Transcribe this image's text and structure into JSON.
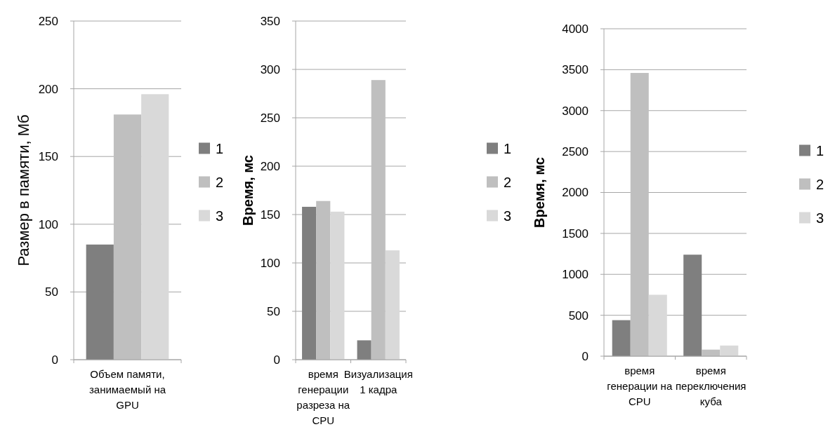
{
  "chart_data": [
    {
      "type": "bar",
      "ylabel": "Размер в памяти, Мб",
      "categories": [
        "Объем памяти, занимаемый на GPU"
      ],
      "series": [
        {
          "name": "1",
          "color": "#7f7f7f",
          "values": [
            85
          ]
        },
        {
          "name": "2",
          "color": "#bfbfbf",
          "values": [
            181
          ]
        },
        {
          "name": "3",
          "color": "#d9d9d9",
          "values": [
            196
          ]
        }
      ],
      "ylim": [
        0,
        250
      ],
      "yticks": [
        0,
        50,
        100,
        150,
        200,
        250
      ],
      "grid": "y",
      "legend": "right"
    },
    {
      "type": "bar",
      "ylabel": "Время, мс",
      "categories": [
        "время генерации разреза на CPU",
        "Визуализация 1 кадра"
      ],
      "series": [
        {
          "name": "1",
          "color": "#7f7f7f",
          "values": [
            158,
            20
          ]
        },
        {
          "name": "2",
          "color": "#bfbfbf",
          "values": [
            164,
            289
          ]
        },
        {
          "name": "3",
          "color": "#d9d9d9",
          "values": [
            153,
            113
          ]
        }
      ],
      "ylim": [
        0,
        350
      ],
      "yticks": [
        0,
        50,
        100,
        150,
        200,
        250,
        300,
        350
      ],
      "grid": "y",
      "legend": "right"
    },
    {
      "type": "bar",
      "ylabel": "Время, мс",
      "categories": [
        "время генерации на CPU",
        "время переключения куба"
      ],
      "series": [
        {
          "name": "1",
          "color": "#7f7f7f",
          "values": [
            440,
            1240
          ]
        },
        {
          "name": "2",
          "color": "#bfbfbf",
          "values": [
            3460,
            80
          ]
        },
        {
          "name": "3",
          "color": "#d9d9d9",
          "values": [
            750,
            130
          ]
        }
      ],
      "ylim": [
        0,
        4000
      ],
      "yticks": [
        0,
        500,
        1000,
        1500,
        2000,
        2500,
        3000,
        3500,
        4000
      ],
      "grid": "y",
      "legend": "right"
    }
  ]
}
